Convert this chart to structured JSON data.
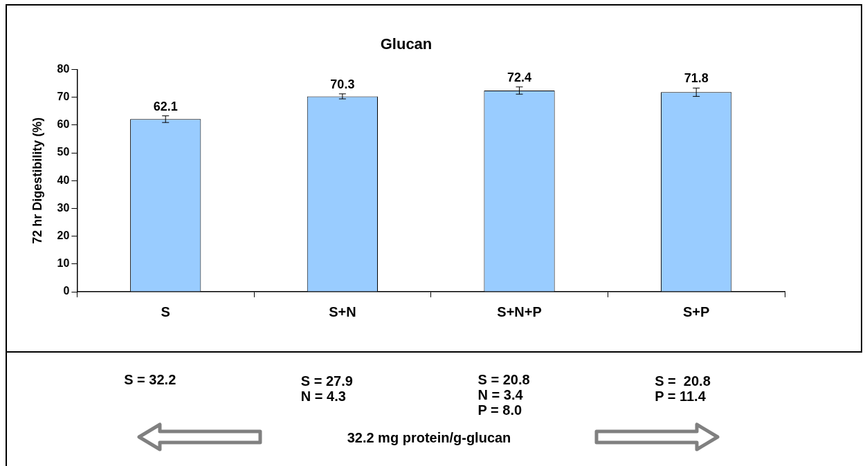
{
  "chart_data": {
    "type": "bar",
    "title": "Glucan",
    "ylabel": "72 hr Digestibility (%)",
    "categories": [
      "S",
      "S+N",
      "S+N+P",
      "S+P"
    ],
    "values": [
      62.1,
      70.3,
      72.4,
      71.8
    ],
    "errors": [
      1.2,
      0.9,
      1.3,
      1.5
    ],
    "color": "#99ccff",
    "data_labels": true,
    "grid": false,
    "legend": false,
    "ylim": [
      0,
      80
    ],
    "yticks": [
      0,
      10,
      20,
      30,
      40,
      50,
      60,
      70,
      80
    ],
    "annotations": [
      "S = 32.2",
      "S = 27.9\nN = 4.3",
      "S = 20.8\nN = 3.4\nP = 8.0",
      "S =  20.8\nP = 11.4",
      "32.2 mg protein/g-glucan"
    ]
  }
}
